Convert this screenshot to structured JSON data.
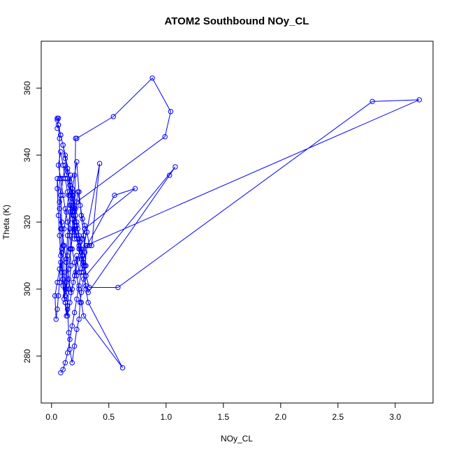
{
  "chart_data": {
    "type": "line",
    "title": "ATOM2 Southbound NOy_CL",
    "xlabel": "NOy_CL",
    "ylabel": "Theta (K)",
    "xlim": [
      -0.09,
      3.33
    ],
    "ylim": [
      266,
      374
    ],
    "xticks": [
      0.0,
      0.5,
      1.0,
      1.5,
      2.0,
      2.5,
      3.0
    ],
    "yticks": [
      280,
      300,
      320,
      340,
      360
    ],
    "xtick_labels": [
      "0.0",
      "0.5",
      "1.0",
      "1.5",
      "2.0",
      "2.5",
      "3.0"
    ],
    "ytick_labels": [
      "280",
      "300",
      "320",
      "340",
      "360"
    ],
    "grid": false,
    "legend": "none",
    "series_color": "#0000ff",
    "series": [
      {
        "x": [
          0.05,
          0.05,
          0.06,
          0.05,
          0.06,
          0.07,
          0.07,
          0.08,
          0.09,
          0.1,
          0.11,
          0.12,
          0.13,
          0.14,
          0.16,
          0.17,
          0.18,
          0.19,
          0.2,
          0.21,
          0.22,
          0.54,
          0.88,
          1.04,
          0.99,
          0.22,
          0.2,
          0.18,
          0.16,
          0.17,
          0.15,
          0.14,
          0.13,
          0.12,
          0.1,
          0.08,
          0.07,
          0.06,
          0.05,
          0.05,
          0.07,
          0.08,
          0.09,
          0.1,
          0.11,
          0.12,
          0.13,
          0.14,
          0.16,
          0.18,
          0.2,
          0.22,
          0.24,
          0.26,
          0.28,
          0.29,
          0.3,
          0.28,
          0.26,
          0.25,
          0.24,
          0.22,
          0.2,
          0.18,
          0.16,
          0.15,
          0.14,
          0.13,
          0.15,
          0.17,
          0.19,
          0.21,
          0.23,
          0.25,
          0.27,
          0.29,
          0.31,
          0.33,
          0.35,
          0.42,
          0.24,
          0.22,
          0.2,
          0.18,
          0.16,
          0.14,
          0.12,
          0.1,
          0.09,
          0.08,
          0.07,
          0.06,
          0.05,
          0.04,
          0.03,
          0.05,
          0.07,
          0.09,
          0.11,
          0.13,
          0.15,
          0.17,
          0.19,
          0.21,
          0.23,
          0.25,
          0.27,
          0.29,
          0.31,
          0.55,
          0.73,
          0.29,
          0.27,
          0.25,
          0.23,
          0.21,
          0.19,
          0.17,
          0.15,
          0.13,
          0.11,
          0.09,
          0.07,
          0.08,
          0.1,
          0.12,
          0.14,
          0.16,
          0.18,
          0.2,
          0.22,
          0.24,
          0.26,
          0.28,
          0.3,
          0.32,
          0.62,
          0.28,
          0.26,
          0.24,
          0.22,
          0.2,
          0.18,
          0.16,
          0.14,
          0.12,
          0.1,
          0.08,
          0.06,
          0.08,
          0.1,
          0.12,
          0.14,
          0.16,
          0.18,
          0.2,
          0.22,
          0.24,
          0.26,
          0.28,
          0.3,
          0.32,
          1.03,
          1.08,
          0.3,
          0.28,
          0.26,
          0.24,
          0.22,
          0.2,
          0.18,
          0.16,
          0.14,
          0.12,
          0.1,
          0.08,
          0.06,
          0.08,
          0.1,
          0.12,
          0.14,
          0.16,
          0.18,
          0.2,
          0.22,
          0.24,
          0.26,
          0.28,
          0.3,
          0.33,
          0.58,
          2.8,
          3.21,
          0.3,
          0.28,
          0.26,
          0.24,
          0.22,
          0.2,
          0.18,
          0.16,
          0.14,
          0.12,
          0.1,
          0.08
        ],
        "y": [
          351,
          350.5,
          351,
          348,
          349,
          345,
          333,
          328,
          320,
          313,
          305,
          298,
          302,
          310,
          318,
          325,
          330,
          322,
          315,
          345,
          345,
          351.5,
          363,
          353,
          345.5,
          326,
          320,
          317,
          312,
          307,
          300,
          295,
          292,
          296,
          303,
          310,
          316,
          322,
          330,
          333,
          326,
          318,
          311,
          303,
          297,
          300,
          309,
          316,
          323,
          329,
          334,
          338,
          329,
          322,
          316,
          311,
          307,
          303,
          299,
          296,
          291,
          288,
          283,
          278,
          282,
          287,
          294,
          300,
          306,
          312,
          318,
          324,
          329,
          325,
          321,
          319,
          317,
          313,
          313,
          337.5,
          305,
          310,
          304,
          300,
          296,
          292,
          296,
          301,
          305,
          308,
          302,
          298,
          294,
          291,
          298,
          302,
          306,
          312,
          318,
          323,
          328,
          334,
          328,
          322,
          318,
          314,
          310,
          307,
          313,
          328,
          330,
          318,
          315,
          312,
          309,
          305,
          302,
          299,
          303,
          308,
          313,
          318,
          324,
          328,
          333,
          337,
          333,
          328,
          323,
          319,
          316,
          313,
          309,
          305,
          300,
          296,
          276.5,
          292,
          296,
          300,
          304,
          308,
          312,
          316,
          320,
          324,
          328,
          333,
          337,
          341,
          337,
          333,
          329,
          325,
          321,
          318,
          315,
          312,
          309,
          305,
          301,
          299,
          334,
          336.5,
          304,
          308,
          312,
          316,
          320,
          324,
          328,
          332,
          336,
          340,
          343,
          346,
          349,
          346,
          343,
          339,
          335,
          331,
          327,
          323,
          319,
          315,
          311,
          307,
          304,
          300.5,
          300.5,
          356,
          356.5,
          313,
          309,
          305,
          301,
          297,
          293,
          289,
          285,
          281,
          278,
          276,
          275
        ]
      }
    ]
  }
}
